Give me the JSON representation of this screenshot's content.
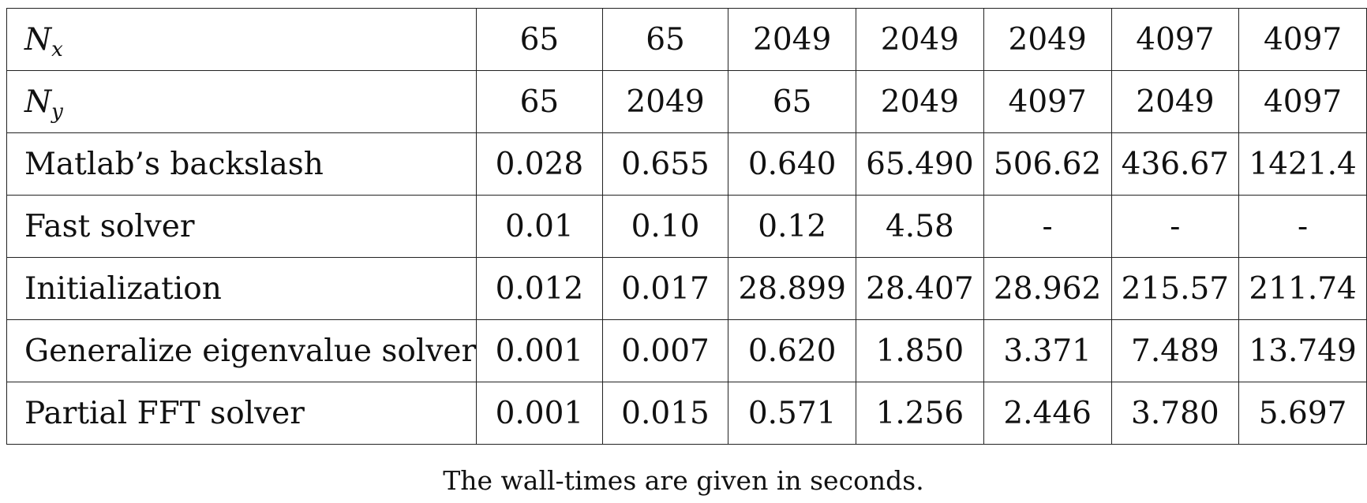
{
  "table": {
    "rows": [
      {
        "label": {
          "main": "N",
          "sub": "x"
        },
        "cells": [
          "65",
          "65",
          "2049",
          "2049",
          "2049",
          "4097",
          "4097"
        ]
      },
      {
        "label": {
          "main": "N",
          "sub": "y"
        },
        "cells": [
          "65",
          "2049",
          "65",
          "2049",
          "4097",
          "2049",
          "4097"
        ]
      },
      {
        "label": "Matlab’s backslash",
        "cells": [
          "0.028",
          "0.655",
          "0.640",
          "65.490",
          "506.62",
          "436.67",
          "1421.4"
        ]
      },
      {
        "label": "Fast solver",
        "cells": [
          "0.01",
          "0.10",
          "0.12",
          "4.58",
          "-",
          "-",
          "-"
        ]
      },
      {
        "label": "Initialization",
        "cells": [
          "0.012",
          "0.017",
          "28.899",
          "28.407",
          "28.962",
          "215.57",
          "211.74"
        ]
      },
      {
        "label": "Generalize eigenvalue solver",
        "cells": [
          "0.001",
          "0.007",
          "0.620",
          "1.850",
          "3.371",
          "7.489",
          "13.749"
        ]
      },
      {
        "label": "Partial FFT solver",
        "cells": [
          "0.001",
          "0.015",
          "0.571",
          "1.256",
          "2.446",
          "3.780",
          "5.697"
        ]
      }
    ]
  },
  "caption": "The wall-times are given in seconds."
}
